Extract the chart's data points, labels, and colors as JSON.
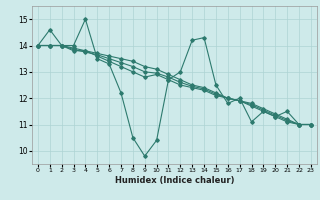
{
  "xlabel": "Humidex (Indice chaleur)",
  "ylabel": "",
  "xlim": [
    -0.5,
    23.5
  ],
  "ylim": [
    9.5,
    15.5
  ],
  "yticks": [
    10,
    11,
    12,
    13,
    14,
    15
  ],
  "xticks": [
    0,
    1,
    2,
    3,
    4,
    5,
    6,
    7,
    8,
    9,
    10,
    11,
    12,
    13,
    14,
    15,
    16,
    17,
    18,
    19,
    20,
    21,
    22,
    23
  ],
  "bg_color": "#ceeaea",
  "line_color": "#2d7a6e",
  "grid_color": "#aed4d4",
  "series": [
    [
      14.0,
      14.6,
      14.0,
      14.0,
      15.0,
      13.5,
      13.3,
      12.2,
      10.5,
      9.8,
      10.4,
      12.7,
      13.0,
      14.2,
      14.3,
      12.5,
      11.8,
      12.0,
      11.1,
      11.5,
      11.3,
      11.5,
      11.0,
      11.0
    ],
    [
      14.0,
      14.0,
      14.0,
      13.8,
      13.8,
      13.6,
      13.4,
      13.2,
      13.0,
      12.8,
      12.9,
      12.7,
      12.5,
      12.4,
      12.3,
      12.1,
      12.0,
      11.9,
      11.7,
      11.5,
      11.3,
      11.1,
      11.0,
      11.0
    ],
    [
      14.0,
      14.0,
      14.0,
      13.9,
      13.8,
      13.7,
      13.6,
      13.5,
      13.4,
      13.2,
      13.1,
      12.9,
      12.7,
      12.5,
      12.4,
      12.2,
      12.0,
      11.9,
      11.8,
      11.6,
      11.4,
      11.2,
      11.0,
      11.0
    ],
    [
      14.0,
      14.0,
      14.0,
      13.85,
      13.75,
      13.65,
      13.5,
      13.35,
      13.2,
      13.0,
      12.95,
      12.8,
      12.6,
      12.45,
      12.35,
      12.15,
      12.0,
      11.9,
      11.75,
      11.55,
      11.35,
      11.15,
      11.0,
      11.0
    ]
  ]
}
